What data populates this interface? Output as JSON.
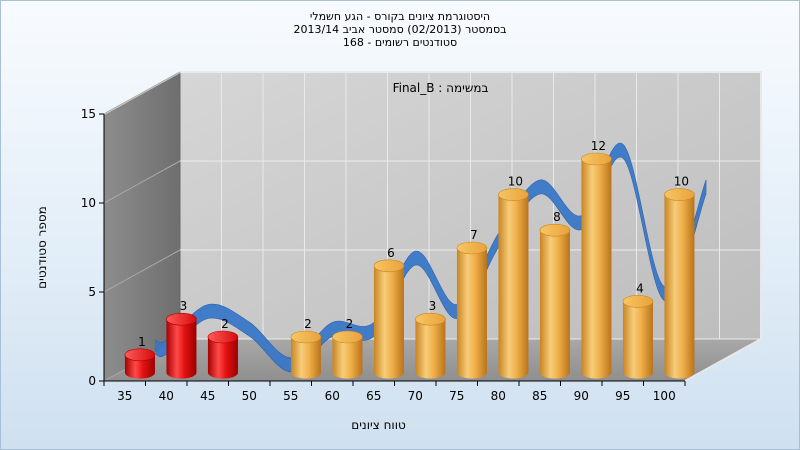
{
  "titles": {
    "line1": "היסטוגרמת ציונים בקורס - הגע חשמלי",
    "line2": "בסמסטר  (02/2013)  סמסטר אביב 2013/14",
    "line3": "סטודנטים רשומים - 168"
  },
  "chart_data": {
    "type": "bar",
    "title": "היסטוגרמת ציונים בקורס - הגע חשמלי",
    "subtitle": "בסמסטר  (02/2013)  סמסטר אביב 2013/14 | סטודנטים רשומים - 168",
    "annotation": "במשימה : Final_B",
    "xlabel": "טווח ציונים",
    "ylabel": "מספר סטודנטים",
    "ylim": [
      0,
      15
    ],
    "yticks": [
      "0",
      "5",
      "10",
      "15"
    ],
    "categories": [
      "35",
      "40",
      "45",
      "50",
      "55",
      "60",
      "65",
      "70",
      "75",
      "80",
      "85",
      "90",
      "95",
      "100"
    ],
    "values": [
      1,
      3,
      2,
      null,
      2,
      2,
      6,
      3,
      7,
      10,
      8,
      12,
      4,
      10
    ],
    "data_labels": [
      "1",
      "3",
      "2",
      "",
      "2",
      "2",
      "6",
      "3",
      "7",
      "10",
      "8",
      "12",
      "4",
      "10"
    ],
    "bar_colors": [
      "red",
      "red",
      "red",
      null,
      "gold",
      "gold",
      "gold",
      "gold",
      "gold",
      "gold",
      "gold",
      "gold",
      "gold",
      "gold"
    ],
    "trend_line": {
      "type": "smoothed ribbon",
      "color": "#3a78c8",
      "follows": "values"
    },
    "grid": true,
    "style": "3d"
  }
}
